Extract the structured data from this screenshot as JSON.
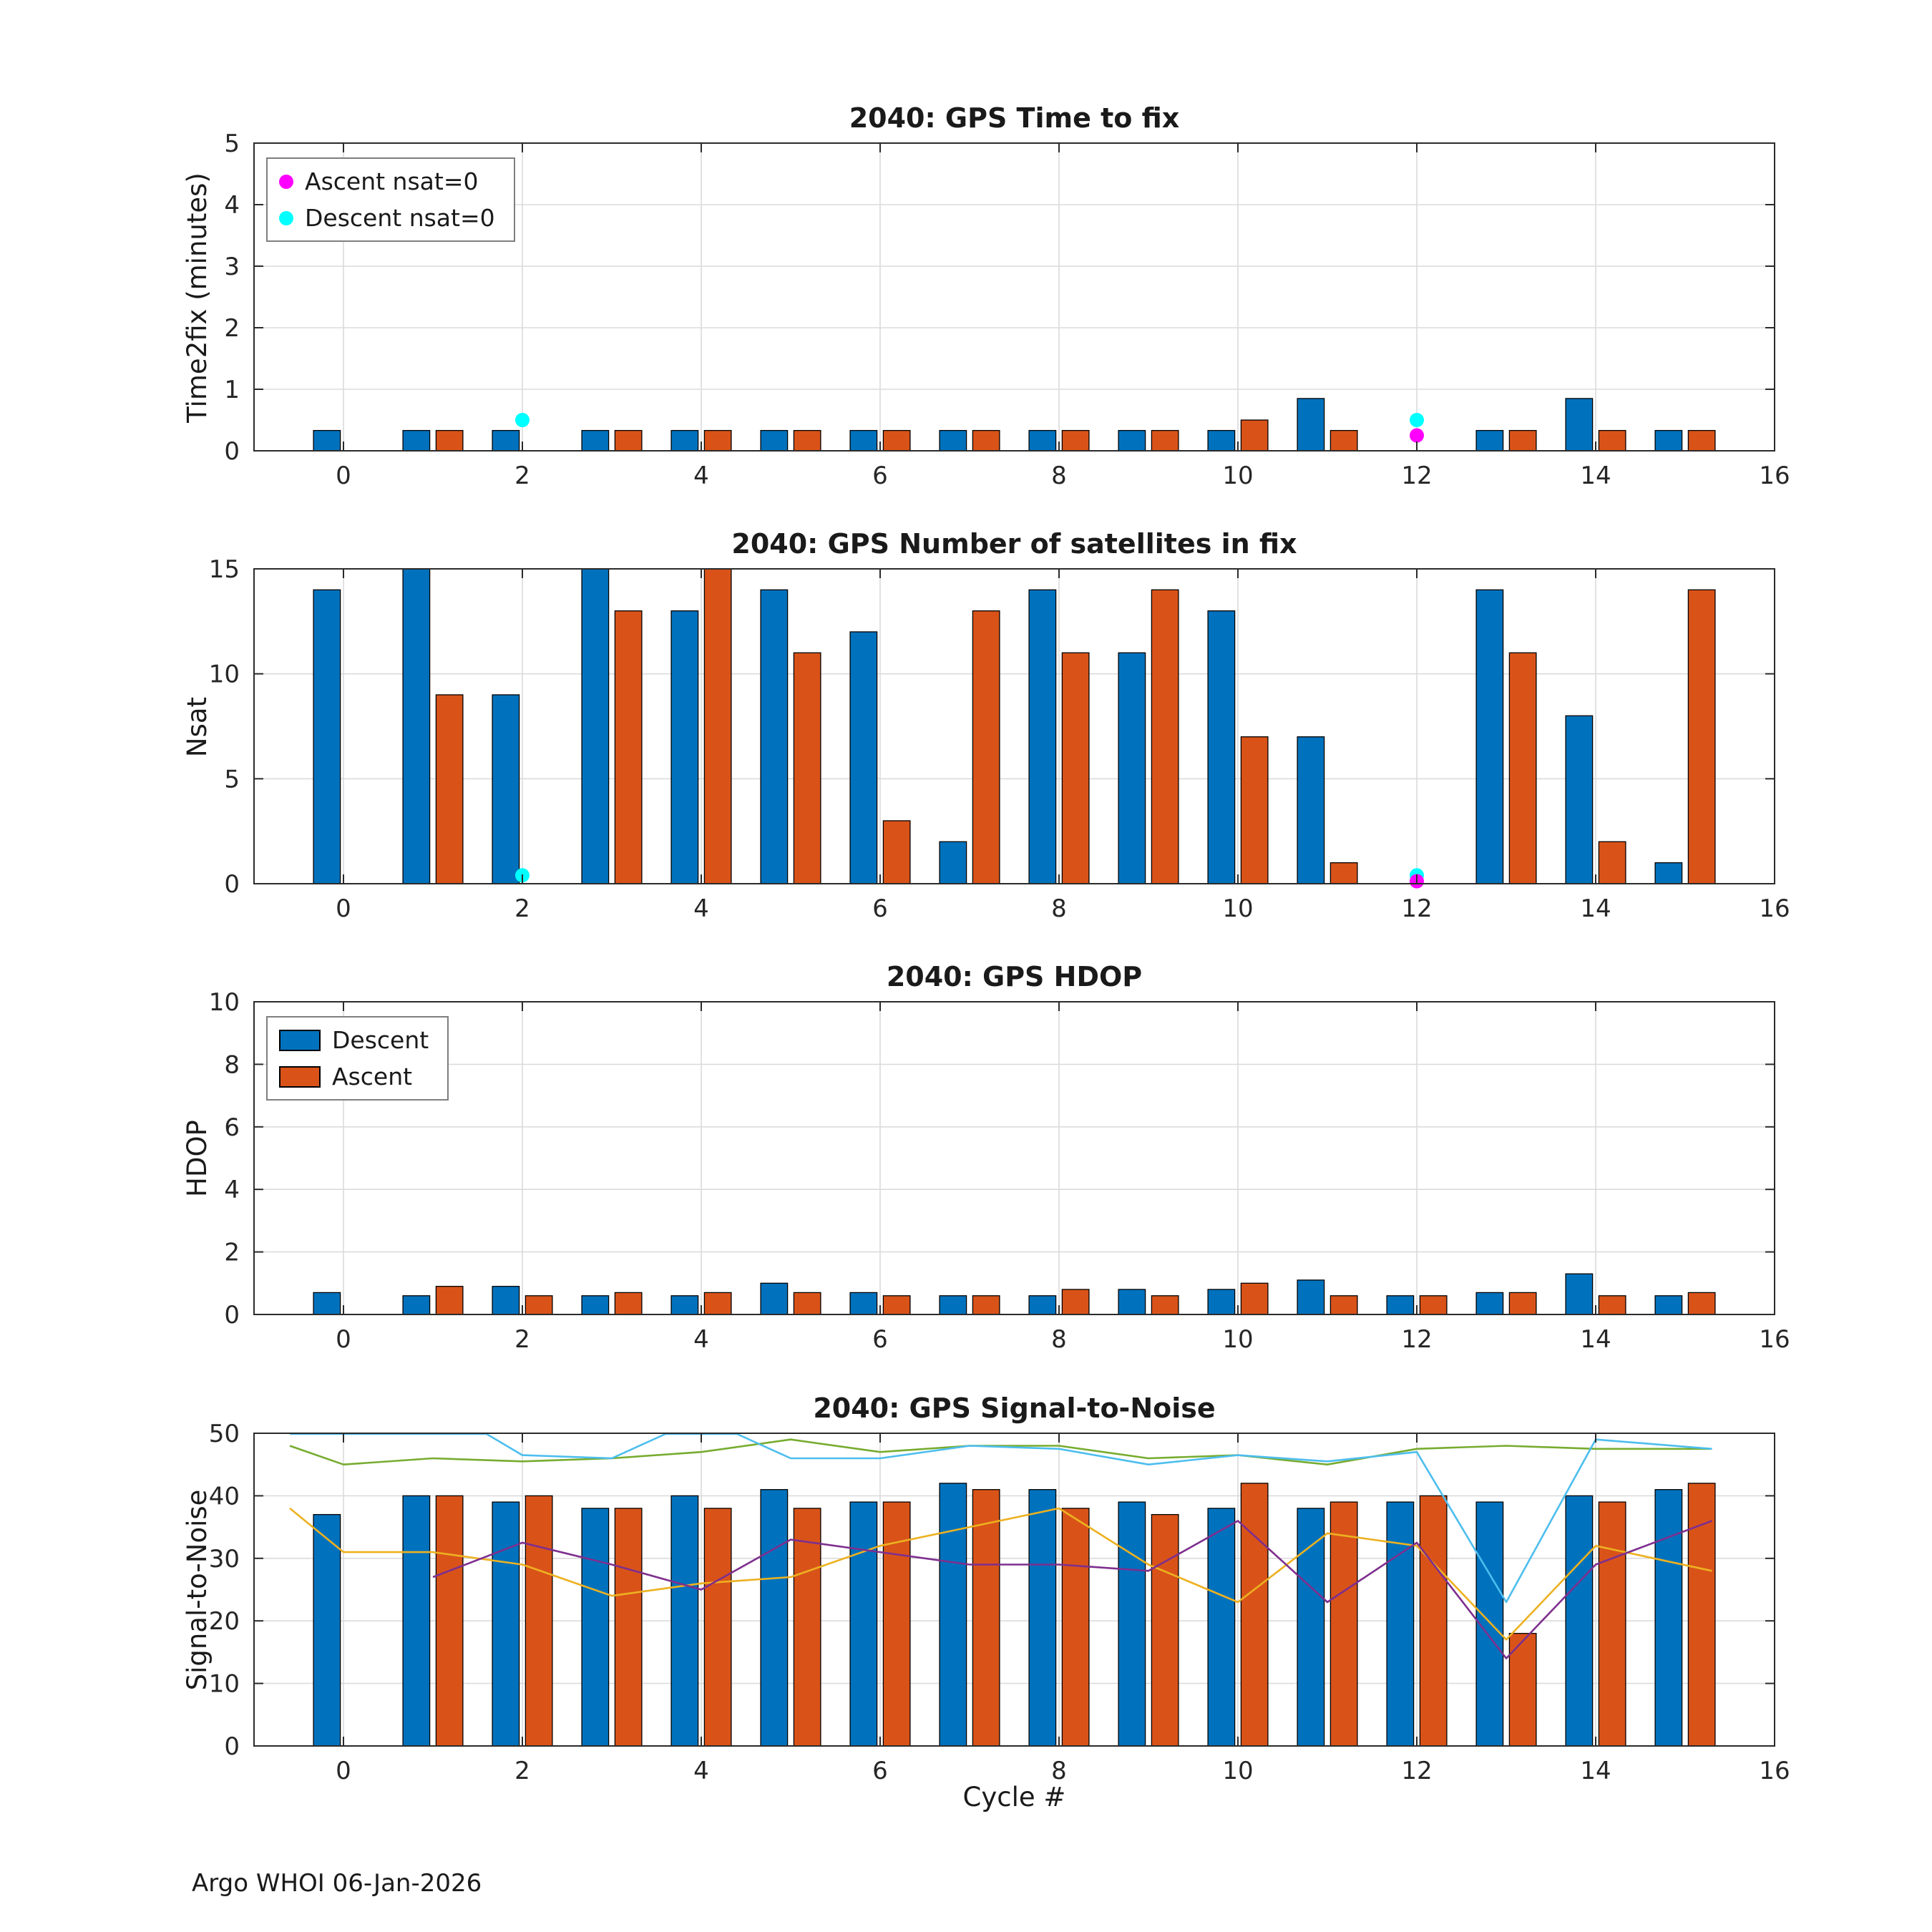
{
  "meta": {
    "footer": "Argo WHOI 06-Jan-2026"
  },
  "colors": {
    "descent": "#0072BD",
    "ascent": "#D95319",
    "magenta_marker": "#FF00FF",
    "cyan_marker": "#00FFFF",
    "line_green": "#77AC30",
    "line_cyan": "#4DBEEE",
    "line_yellow": "#EDB120",
    "line_purple": "#7E2F8E"
  },
  "chart_data": [
    {
      "id": "time2fix",
      "type": "bar",
      "title": "2040: GPS Time to fix",
      "xlabel": "",
      "ylabel": "Time2fix (minutes)",
      "xlim": [
        -1,
        16
      ],
      "ylim": [
        0,
        5
      ],
      "xticks": [
        0,
        2,
        4,
        6,
        8,
        10,
        12,
        14,
        16
      ],
      "yticks": [
        0,
        1,
        2,
        3,
        4,
        5
      ],
      "categories": [
        0,
        1,
        2,
        3,
        4,
        5,
        6,
        7,
        8,
        9,
        10,
        11,
        12,
        13,
        14,
        15
      ],
      "series": [
        {
          "name": "Descent",
          "color": "#0072BD",
          "values": [
            0.33,
            0.33,
            0.33,
            0.33,
            0.33,
            0.33,
            0.33,
            0.33,
            0.33,
            0.33,
            0.33,
            0.85,
            null,
            0.33,
            0.85,
            0.33
          ]
        },
        {
          "name": "Ascent",
          "color": "#D95319",
          "values": [
            null,
            0.33,
            null,
            0.33,
            0.33,
            0.33,
            0.33,
            0.33,
            0.33,
            0.33,
            0.5,
            0.33,
            null,
            0.33,
            0.33,
            0.33
          ]
        }
      ],
      "markers": [
        {
          "name": "descent-nsat0-marker",
          "color": "#00FFFF",
          "points": [
            {
              "x": 2,
              "y": 0.5
            },
            {
              "x": 12,
              "y": 0.5
            }
          ]
        },
        {
          "name": "ascent-nsat0-marker",
          "color": "#FF00FF",
          "points": [
            {
              "x": 12,
              "y": 0.25
            }
          ]
        }
      ],
      "legend": {
        "position": "top-left",
        "entries": [
          {
            "label": "Ascent nsat=0",
            "color": "#FF00FF",
            "marker": "dot"
          },
          {
            "label": "Descent nsat=0",
            "color": "#00FFFF",
            "marker": "dot"
          }
        ]
      }
    },
    {
      "id": "nsat",
      "type": "bar",
      "title": "2040: GPS Number of satellites in fix",
      "xlabel": "",
      "ylabel": "Nsat",
      "xlim": [
        -1,
        16
      ],
      "ylim": [
        0,
        15
      ],
      "xticks": [
        0,
        2,
        4,
        6,
        8,
        10,
        12,
        14,
        16
      ],
      "yticks": [
        0,
        5,
        10,
        15
      ],
      "categories": [
        0,
        1,
        2,
        3,
        4,
        5,
        6,
        7,
        8,
        9,
        10,
        11,
        12,
        13,
        14,
        15
      ],
      "series": [
        {
          "name": "Descent",
          "color": "#0072BD",
          "values": [
            14,
            15,
            9,
            15,
            13,
            14,
            12,
            2,
            14,
            11,
            13,
            7,
            null,
            14,
            8,
            1
          ]
        },
        {
          "name": "Ascent",
          "color": "#D95319",
          "values": [
            null,
            9,
            null,
            13,
            15,
            11,
            3,
            13,
            11,
            14,
            7,
            1,
            null,
            11,
            2,
            14
          ]
        }
      ],
      "markers": [
        {
          "name": "descent-nsat0-marker",
          "color": "#00FFFF",
          "points": [
            {
              "x": 2,
              "y": 0.4
            },
            {
              "x": 12,
              "y": 0.4
            }
          ]
        },
        {
          "name": "ascent-nsat0-marker",
          "color": "#FF00FF",
          "points": [
            {
              "x": 12,
              "y": 0.12
            }
          ]
        }
      ]
    },
    {
      "id": "hdop",
      "type": "bar",
      "title": "2040: GPS HDOP",
      "xlabel": "",
      "ylabel": "HDOP",
      "xlim": [
        -1,
        16
      ],
      "ylim": [
        0,
        10
      ],
      "xticks": [
        0,
        2,
        4,
        6,
        8,
        10,
        12,
        14,
        16
      ],
      "yticks": [
        0,
        2,
        4,
        6,
        8,
        10
      ],
      "categories": [
        0,
        1,
        2,
        3,
        4,
        5,
        6,
        7,
        8,
        9,
        10,
        11,
        12,
        13,
        14,
        15
      ],
      "series": [
        {
          "name": "Descent",
          "color": "#0072BD",
          "values": [
            0.7,
            0.6,
            0.9,
            0.6,
            0.6,
            1.0,
            0.7,
            0.6,
            0.6,
            0.8,
            0.8,
            1.1,
            0.6,
            0.7,
            1.3,
            0.6
          ]
        },
        {
          "name": "Ascent",
          "color": "#D95319",
          "values": [
            null,
            0.9,
            0.6,
            0.7,
            0.7,
            0.7,
            0.6,
            0.6,
            0.8,
            0.6,
            1.0,
            0.6,
            0.6,
            0.7,
            0.6,
            0.7
          ]
        }
      ],
      "legend": {
        "position": "top-left",
        "entries": [
          {
            "label": "Descent",
            "color": "#0072BD",
            "marker": "rect"
          },
          {
            "label": "Ascent",
            "color": "#D95319",
            "marker": "rect"
          }
        ]
      }
    },
    {
      "id": "snr",
      "type": "bar",
      "title": "2040: GPS Signal-to-Noise",
      "xlabel": "Cycle #",
      "ylabel": "Signal-to-Noise",
      "xlim": [
        -1,
        16
      ],
      "ylim": [
        0,
        50
      ],
      "xticks": [
        0,
        2,
        4,
        6,
        8,
        10,
        12,
        14,
        16
      ],
      "yticks": [
        0,
        10,
        20,
        30,
        40,
        50
      ],
      "categories": [
        0,
        1,
        2,
        3,
        4,
        5,
        6,
        7,
        8,
        9,
        10,
        11,
        12,
        13,
        14,
        15
      ],
      "series": [
        {
          "name": "Descent",
          "color": "#0072BD",
          "values": [
            37,
            40,
            39,
            38,
            40,
            41,
            39,
            42,
            41,
            39,
            38,
            38,
            39,
            39,
            40,
            41
          ]
        },
        {
          "name": "Ascent",
          "color": "#D95319",
          "values": [
            null,
            40,
            40,
            38,
            38,
            38,
            39,
            41,
            38,
            37,
            42,
            39,
            40,
            18,
            39,
            42
          ]
        }
      ],
      "lines": [
        {
          "name": "green",
          "color": "#77AC30",
          "x": [
            -0.6,
            0,
            1,
            2,
            3,
            4,
            5,
            6,
            7,
            8,
            9,
            10,
            11,
            12,
            13,
            14,
            15.3
          ],
          "y": [
            48,
            45,
            46,
            45.5,
            46,
            47,
            49,
            47,
            48,
            48,
            46,
            46.5,
            45,
            47.5,
            48,
            47.5,
            47.5
          ]
        },
        {
          "name": "cyan",
          "color": "#4DBEEE",
          "x": [
            -0.6,
            0,
            1,
            1.6,
            2,
            3,
            3.6,
            4,
            4.4,
            5,
            6,
            7,
            8,
            9,
            10,
            11,
            12,
            13,
            14,
            15.3
          ],
          "y": [
            55,
            55,
            53,
            50,
            46.5,
            46,
            50,
            50.5,
            50,
            46,
            46,
            48,
            47.5,
            45,
            46.5,
            45.5,
            47,
            23,
            49,
            47.5
          ]
        },
        {
          "name": "yellow",
          "color": "#EDB120",
          "x": [
            -0.6,
            0,
            1,
            2,
            3,
            4,
            5,
            6,
            7,
            8,
            9,
            10,
            11,
            12,
            13,
            14,
            15.3
          ],
          "y": [
            38,
            31,
            31,
            29,
            24,
            26,
            27,
            32,
            35,
            38,
            29,
            23,
            34,
            32,
            17,
            32,
            28
          ]
        },
        {
          "name": "purple",
          "color": "#7E2F8E",
          "x": [
            1,
            2,
            3,
            4,
            5,
            6,
            7,
            8,
            9,
            10,
            11,
            12,
            13,
            14,
            15.3
          ],
          "y": [
            27,
            32.5,
            29,
            25,
            33,
            31,
            29,
            29,
            28,
            36,
            23,
            32.5,
            14,
            29,
            36
          ]
        }
      ]
    }
  ]
}
